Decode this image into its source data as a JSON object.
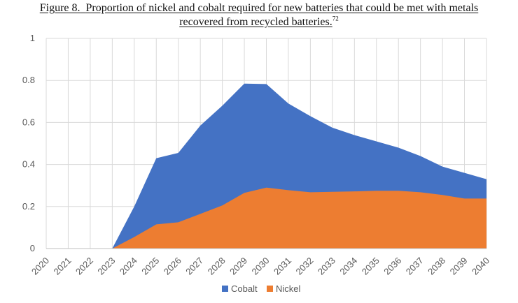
{
  "figure": {
    "label": "Figure 8.",
    "title_line1": "Proportion of nickel and cobalt required for new batteries that could be met with metals",
    "title_line2": "recovered from recycled batteries.",
    "footnote": "72"
  },
  "chart_data": {
    "type": "area",
    "stacked": true,
    "title": "Figure 8.  Proportion of nickel and cobalt required for new batteries that could be met with metals recovered from recycled batteries.",
    "xlabel": "",
    "ylabel": "",
    "x": [
      "2020",
      "2021",
      "2022",
      "2023",
      "2024",
      "2025",
      "2026",
      "2027",
      "2028",
      "2029",
      "2030",
      "2031",
      "2032",
      "2033",
      "2034",
      "2035",
      "2036",
      "2037",
      "2038",
      "2039",
      "2040"
    ],
    "ylim": [
      0,
      1
    ],
    "yticks": [
      "0",
      "0.2",
      "0.4",
      "0.6",
      "0.8",
      "1"
    ],
    "grid": "vertical and horizontal",
    "legend_position": "bottom",
    "series": [
      {
        "name": "Cobalt",
        "color": "#4472C4",
        "values": [
          0,
          0,
          0,
          0,
          0.2,
          0.43,
          0.455,
          0.585,
          0.68,
          0.785,
          0.783,
          0.69,
          0.63,
          0.575,
          0.54,
          0.51,
          0.48,
          0.44,
          0.39,
          0.36,
          0.33
        ]
      },
      {
        "name": "Nickel",
        "color": "#ED7D31",
        "values": [
          0,
          0,
          0,
          0,
          0.055,
          0.115,
          0.125,
          0.165,
          0.205,
          0.265,
          0.29,
          0.278,
          0.268,
          0.27,
          0.272,
          0.275,
          0.275,
          0.268,
          0.255,
          0.238,
          0.238
        ]
      }
    ]
  }
}
